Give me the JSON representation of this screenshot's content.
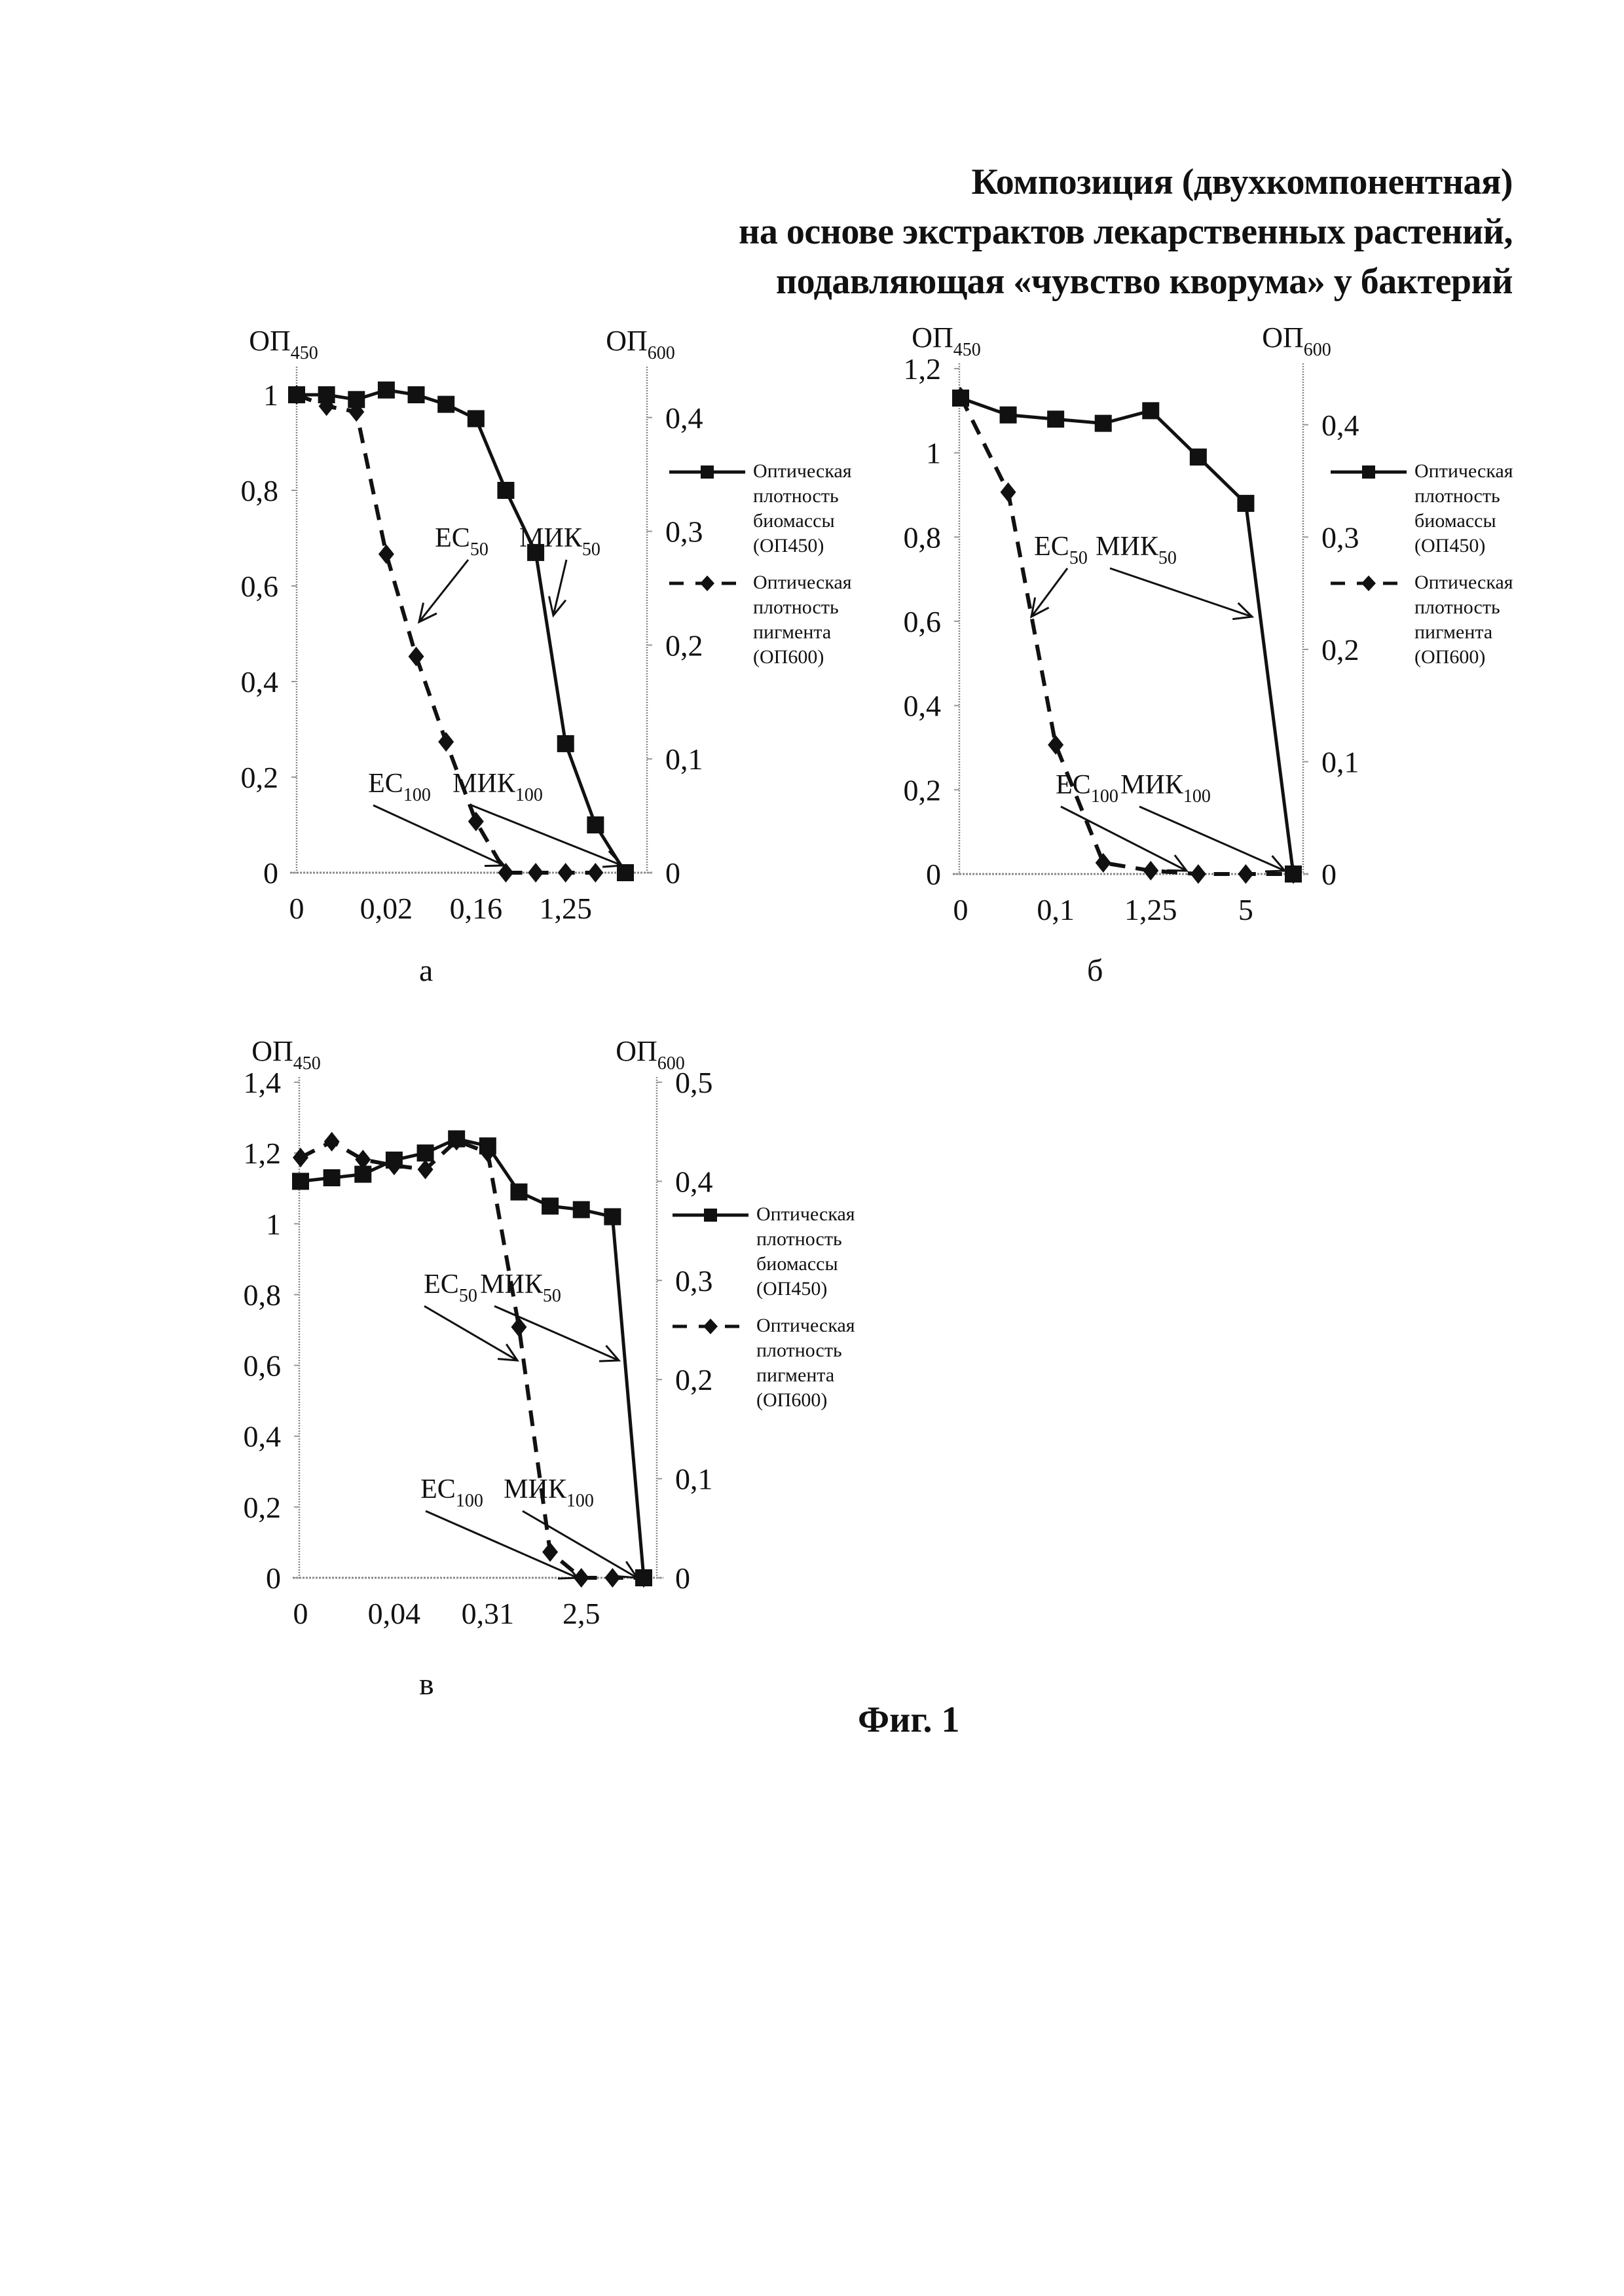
{
  "title": {
    "lines": [
      "Композиция (двухкомпонентная)",
      "на основе экстрактов лекарственных растений,",
      "подавляющая «чувство кворума» у бактерий"
    ]
  },
  "figure_caption": "Фиг. 1",
  "legend": {
    "series1": [
      "Оптическая",
      "плотность",
      "биомассы",
      "(ОП450)"
    ],
    "series2": [
      "Оптическая",
      "плотность",
      "пигмента",
      "(ОП600)"
    ]
  },
  "chart_data": [
    {
      "type": "line",
      "panel_label": "а",
      "left_axis_label": {
        "main": "ОП",
        "sub": "450"
      },
      "right_axis_label": {
        "main": "ОП",
        "sub": "600"
      },
      "x_tick_labels": [
        "0",
        "",
        "",
        "0,02",
        "",
        "",
        "0,16",
        "",
        "",
        "1,25",
        "",
        ""
      ],
      "left_ylim": [
        0,
        1
      ],
      "left_ticks": [
        {
          "v": 0,
          "label": "0"
        },
        {
          "v": 0.2,
          "label": "0,2"
        },
        {
          "v": 0.4,
          "label": "0,4"
        },
        {
          "v": 0.6,
          "label": "0,6"
        },
        {
          "v": 0.8,
          "label": "0,8"
        },
        {
          "v": 1,
          "label": "1"
        }
      ],
      "right_ylim": [
        0,
        0.42
      ],
      "right_ticks": [
        {
          "v": 0,
          "label": "0"
        },
        {
          "v": 0.1,
          "label": "0,1"
        },
        {
          "v": 0.2,
          "label": "0,2"
        },
        {
          "v": 0.3,
          "label": "0,3"
        },
        {
          "v": 0.4,
          "label": "0,4"
        }
      ],
      "series": [
        {
          "name": "Оптическая плотность биомассы (ОП450)",
          "axis": "left",
          "marker": "square",
          "style": "solid",
          "values": [
            1.0,
            1.0,
            0.99,
            1.01,
            1.0,
            0.98,
            0.95,
            0.8,
            0.67,
            0.27,
            0.1,
            0
          ]
        },
        {
          "name": "Оптическая плотность пигмента (ОП600)",
          "axis": "right",
          "marker": "diamond",
          "style": "dashed",
          "values": [
            0.42,
            0.41,
            0.405,
            0.28,
            0.19,
            0.115,
            0.045,
            0,
            0,
            0,
            0,
            null
          ]
        }
      ],
      "annotations": [
        {
          "label": "EC",
          "sub": "50"
        },
        {
          "label": "МИК",
          "sub": "50"
        },
        {
          "label": "EC",
          "sub": "100"
        },
        {
          "label": "МИК",
          "sub": "100"
        }
      ],
      "grid": false,
      "legend_position": "right"
    },
    {
      "type": "line",
      "panel_label": "б",
      "left_axis_label": {
        "main": "ОП",
        "sub": "450"
      },
      "right_axis_label": {
        "main": "ОП",
        "sub": "600"
      },
      "x_tick_labels": [
        "0",
        "",
        "0,1",
        "",
        "1,25",
        "",
        "5",
        ""
      ],
      "left_ylim": [
        0,
        1.2
      ],
      "left_ticks": [
        {
          "v": 0,
          "label": "0"
        },
        {
          "v": 0.2,
          "label": "0,2"
        },
        {
          "v": 0.4,
          "label": "0,4"
        },
        {
          "v": 0.6,
          "label": "0,6"
        },
        {
          "v": 0.8,
          "label": "0,8"
        },
        {
          "v": 1,
          "label": "1"
        },
        {
          "v": 1.2,
          "label": "1,2"
        }
      ],
      "right_ylim": [
        0,
        0.45
      ],
      "right_ticks": [
        {
          "v": 0,
          "label": "0"
        },
        {
          "v": 0.1,
          "label": "0,1"
        },
        {
          "v": 0.2,
          "label": "0,2"
        },
        {
          "v": 0.3,
          "label": "0,3"
        },
        {
          "v": 0.4,
          "label": "0,4"
        }
      ],
      "series": [
        {
          "name": "Оптическая плотность биомассы (ОП450)",
          "axis": "left",
          "marker": "square",
          "style": "solid",
          "values": [
            1.13,
            1.09,
            1.08,
            1.07,
            1.1,
            0.99,
            0.88,
            0
          ]
        },
        {
          "name": "Оптическая плотность пигмента (ОП600)",
          "axis": "right",
          "marker": "diamond",
          "style": "dashed",
          "values": [
            0.425,
            0.34,
            0.115,
            0.01,
            0.003,
            0,
            0,
            0
          ]
        }
      ],
      "annotations": [
        {
          "label": "EC",
          "sub": "50"
        },
        {
          "label": "МИК",
          "sub": "50"
        },
        {
          "label": "EC",
          "sub": "100"
        },
        {
          "label": "МИК",
          "sub": "100"
        }
      ],
      "grid": false,
      "legend_position": "right"
    },
    {
      "type": "line",
      "panel_label": "в",
      "left_axis_label": {
        "main": "ОП",
        "sub": "450"
      },
      "right_axis_label": {
        "main": "ОП",
        "sub": "600"
      },
      "x_tick_labels": [
        "0",
        "",
        "",
        "0,04",
        "",
        "",
        "0,31",
        "",
        "",
        "2,5",
        "",
        ""
      ],
      "left_ylim": [
        0,
        1.4
      ],
      "left_ticks": [
        {
          "v": 0,
          "label": "0"
        },
        {
          "v": 0.2,
          "label": "0,2"
        },
        {
          "v": 0.4,
          "label": "0,4"
        },
        {
          "v": 0.6,
          "label": "0,6"
        },
        {
          "v": 0.8,
          "label": "0,8"
        },
        {
          "v": 1,
          "label": "1"
        },
        {
          "v": 1.2,
          "label": "1,2"
        },
        {
          "v": 1.4,
          "label": "1,4"
        }
      ],
      "right_ylim": [
        0,
        0.5
      ],
      "right_ticks": [
        {
          "v": 0,
          "label": "0"
        },
        {
          "v": 0.1,
          "label": "0,1"
        },
        {
          "v": 0.2,
          "label": "0,2"
        },
        {
          "v": 0.3,
          "label": "0,3"
        },
        {
          "v": 0.4,
          "label": "0,4"
        },
        {
          "v": 0.5,
          "label": "0,5"
        }
      ],
      "series": [
        {
          "name": "Оптическая плотность биомассы (ОП450)",
          "axis": "left",
          "marker": "square",
          "style": "solid",
          "values": [
            1.12,
            1.13,
            1.14,
            1.18,
            1.2,
            1.24,
            1.22,
            1.09,
            1.05,
            1.04,
            1.02,
            0
          ]
        },
        {
          "name": "Оптическая плотность пигмента (ОП600)",
          "axis": "right",
          "marker": "diamond",
          "style": "dashed",
          "values": [
            0.424,
            0.44,
            0.422,
            0.416,
            0.412,
            0.441,
            0.429,
            0.253,
            0.026,
            0,
            0,
            0
          ]
        }
      ],
      "annotations": [
        {
          "label": "EC",
          "sub": "50"
        },
        {
          "label": "МИК",
          "sub": "50"
        },
        {
          "label": "EC",
          "sub": "100"
        },
        {
          "label": "МИК",
          "sub": "100"
        }
      ],
      "grid": false,
      "legend_position": "right"
    }
  ]
}
